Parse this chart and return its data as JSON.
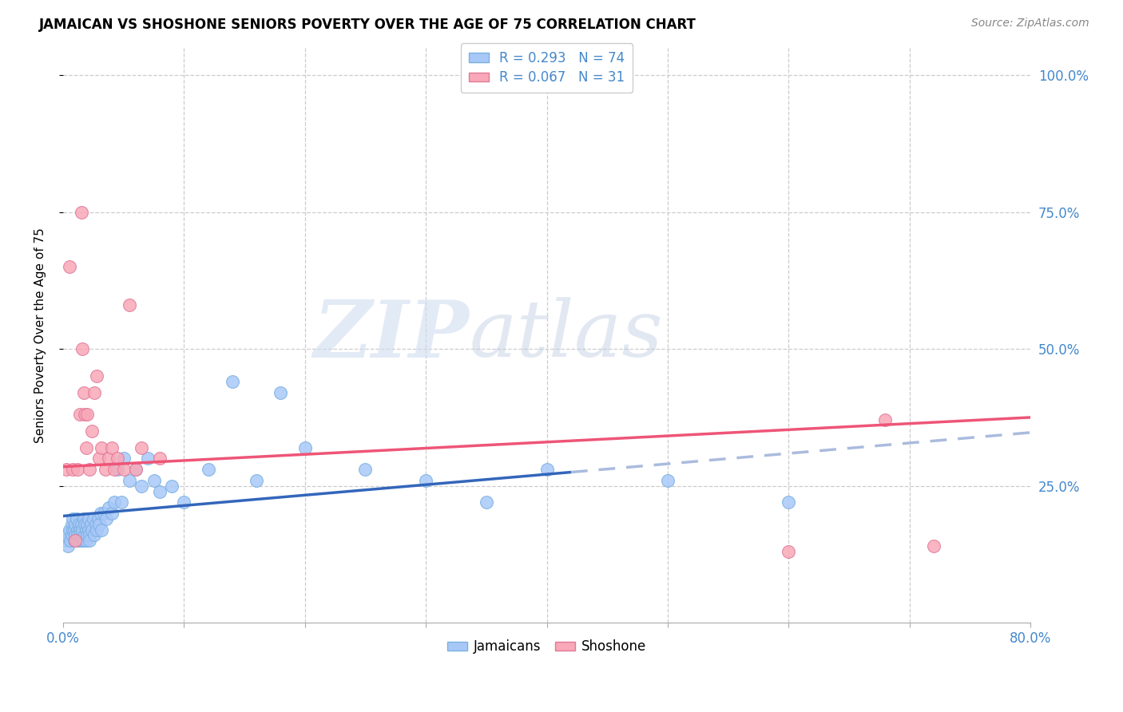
{
  "title": "JAMAICAN VS SHOSHONE SENIORS POVERTY OVER THE AGE OF 75 CORRELATION CHART",
  "source": "Source: ZipAtlas.com",
  "ylabel": "Seniors Poverty Over the Age of 75",
  "xlim": [
    0.0,
    0.8
  ],
  "ylim": [
    0.0,
    1.05
  ],
  "jamaican_color": "#a8c8f8",
  "jamaican_edge": "#7ab0e0",
  "shoshone_color": "#f8a8b8",
  "shoshone_edge": "#e07898",
  "jamaican_R": 0.293,
  "jamaican_N": 74,
  "shoshone_R": 0.067,
  "shoshone_N": 31,
  "trend_blue_color": "#3366bb",
  "trend_pink_color": "#ee5577",
  "trend_dash_color": "#aabbdd",
  "watermark_zip": "ZIP",
  "watermark_atlas": "atlas",
  "jamaican_x": [
    0.002,
    0.003,
    0.004,
    0.005,
    0.006,
    0.007,
    0.007,
    0.008,
    0.008,
    0.009,
    0.009,
    0.01,
    0.01,
    0.011,
    0.011,
    0.012,
    0.012,
    0.013,
    0.013,
    0.014,
    0.014,
    0.015,
    0.015,
    0.016,
    0.016,
    0.017,
    0.017,
    0.018,
    0.018,
    0.019,
    0.019,
    0.02,
    0.02,
    0.021,
    0.021,
    0.022,
    0.022,
    0.023,
    0.024,
    0.025,
    0.026,
    0.027,
    0.028,
    0.029,
    0.03,
    0.031,
    0.032,
    0.034,
    0.036,
    0.038,
    0.04,
    0.042,
    0.045,
    0.048,
    0.05,
    0.055,
    0.06,
    0.065,
    0.07,
    0.075,
    0.08,
    0.09,
    0.1,
    0.12,
    0.14,
    0.16,
    0.18,
    0.2,
    0.25,
    0.3,
    0.35,
    0.4,
    0.5,
    0.6
  ],
  "jamaican_y": [
    0.15,
    0.16,
    0.14,
    0.17,
    0.15,
    0.18,
    0.16,
    0.17,
    0.19,
    0.15,
    0.17,
    0.18,
    0.16,
    0.19,
    0.15,
    0.17,
    0.16,
    0.18,
    0.15,
    0.17,
    0.16,
    0.18,
    0.15,
    0.16,
    0.17,
    0.19,
    0.15,
    0.18,
    0.16,
    0.17,
    0.15,
    0.18,
    0.16,
    0.17,
    0.19,
    0.16,
    0.15,
    0.18,
    0.17,
    0.19,
    0.16,
    0.18,
    0.17,
    0.19,
    0.18,
    0.2,
    0.17,
    0.2,
    0.19,
    0.21,
    0.2,
    0.22,
    0.28,
    0.22,
    0.3,
    0.26,
    0.28,
    0.25,
    0.3,
    0.26,
    0.24,
    0.25,
    0.22,
    0.28,
    0.44,
    0.26,
    0.42,
    0.32,
    0.28,
    0.26,
    0.22,
    0.28,
    0.26,
    0.22
  ],
  "shoshone_x": [
    0.003,
    0.005,
    0.008,
    0.01,
    0.012,
    0.014,
    0.015,
    0.016,
    0.017,
    0.018,
    0.019,
    0.02,
    0.022,
    0.024,
    0.026,
    0.028,
    0.03,
    0.032,
    0.035,
    0.038,
    0.04,
    0.042,
    0.045,
    0.05,
    0.055,
    0.06,
    0.065,
    0.08,
    0.6,
    0.68,
    0.72
  ],
  "shoshone_y": [
    0.28,
    0.65,
    0.28,
    0.15,
    0.28,
    0.38,
    0.75,
    0.5,
    0.42,
    0.38,
    0.32,
    0.38,
    0.28,
    0.35,
    0.42,
    0.45,
    0.3,
    0.32,
    0.28,
    0.3,
    0.32,
    0.28,
    0.3,
    0.28,
    0.58,
    0.28,
    0.32,
    0.3,
    0.13,
    0.37,
    0.14
  ],
  "trend_j_x0": 0.0,
  "trend_j_y0": 0.195,
  "trend_j_x1": 0.42,
  "trend_j_y1": 0.275,
  "trend_j_dash_x0": 0.42,
  "trend_j_dash_x1": 0.8,
  "trend_s_x0": 0.0,
  "trend_s_y0": 0.285,
  "trend_s_x1": 0.8,
  "trend_s_y1": 0.375
}
